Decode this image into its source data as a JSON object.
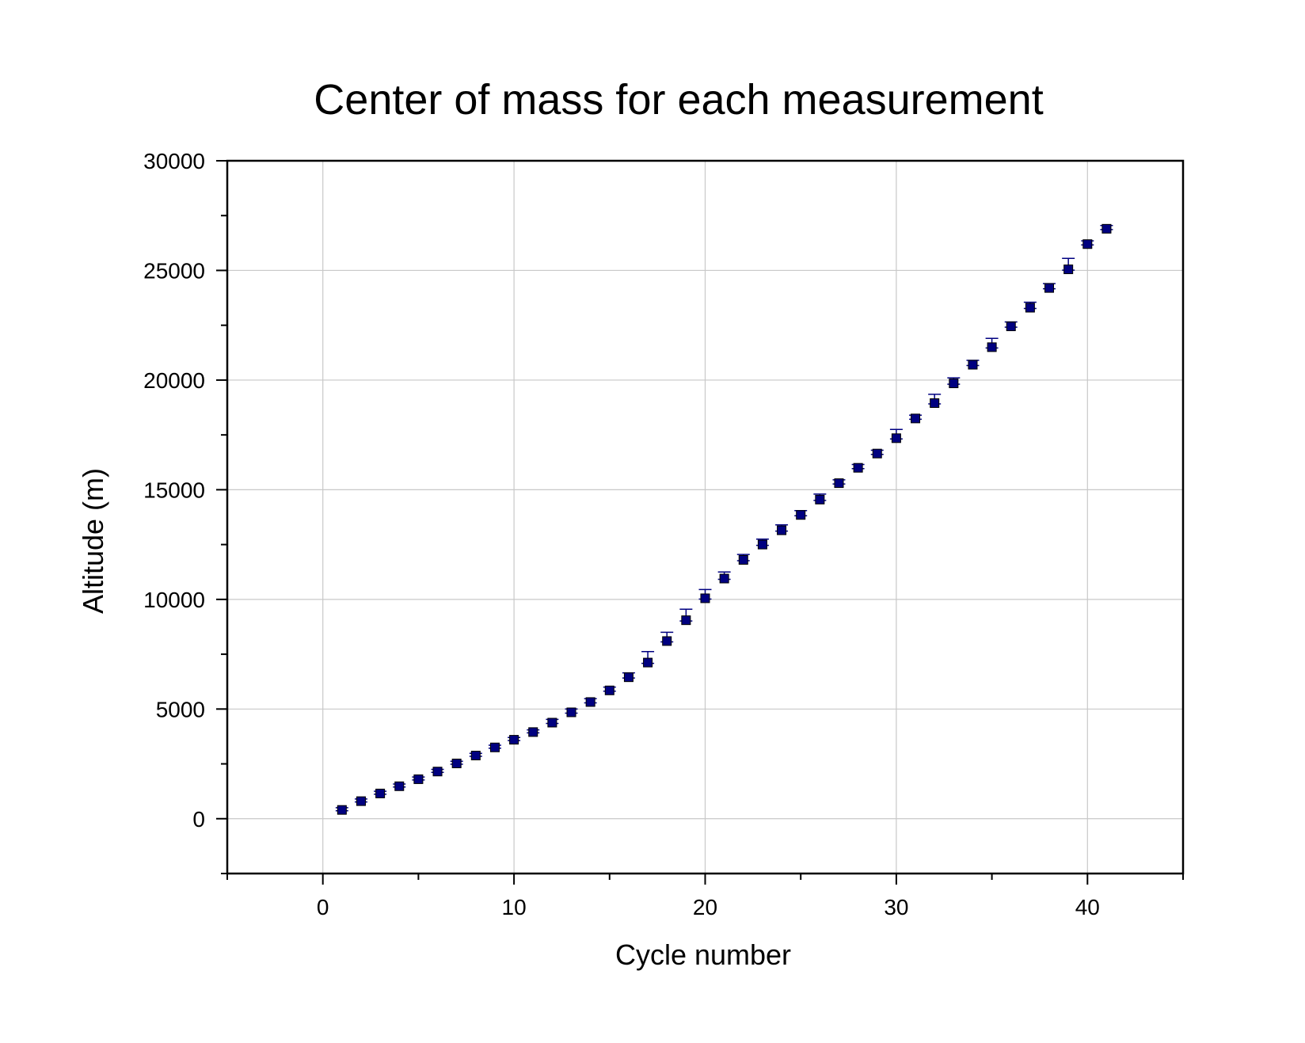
{
  "chart_data": {
    "type": "scatter",
    "title": "Center of mass for each measurement",
    "xlabel": "Cycle number",
    "ylabel": "Altitude (m)",
    "xlim": [
      -5,
      45
    ],
    "ylim": [
      -2500,
      30000
    ],
    "xticks": [
      0,
      10,
      20,
      30,
      40
    ],
    "yticks": [
      0,
      5000,
      10000,
      15000,
      20000,
      25000,
      30000
    ],
    "grid": true,
    "legend": "none",
    "marker_color": "#000080",
    "grid_color": "#c8c8c8",
    "series": [
      {
        "x": [
          1,
          2,
          3,
          4,
          5,
          6,
          7,
          8,
          9,
          10,
          11,
          12,
          13,
          14,
          15,
          16,
          17,
          18,
          19,
          20,
          21,
          22,
          23,
          24,
          25,
          26,
          27,
          28,
          29,
          30,
          31,
          32,
          33,
          34,
          35,
          36,
          37,
          38,
          39,
          40,
          41
        ],
        "y": [
          400,
          800,
          1150,
          1480,
          1800,
          2150,
          2520,
          2880,
          3250,
          3600,
          3950,
          4380,
          4850,
          5320,
          5850,
          6450,
          7120,
          8100,
          9050,
          10050,
          10950,
          11800,
          12500,
          13150,
          13850,
          14550,
          15300,
          16000,
          16650,
          17350,
          18250,
          18950,
          19850,
          20700,
          21500,
          22450,
          23300,
          24200,
          25050,
          26200,
          26900
        ],
        "error_up": [
          100,
          100,
          100,
          100,
          100,
          100,
          100,
          100,
          100,
          100,
          100,
          150,
          150,
          150,
          150,
          200,
          500,
          400,
          500,
          400,
          300,
          250,
          250,
          250,
          200,
          250,
          150,
          150,
          150,
          400,
          150,
          400,
          250,
          200,
          400,
          200,
          250,
          200,
          500,
          150,
          150
        ]
      }
    ]
  }
}
